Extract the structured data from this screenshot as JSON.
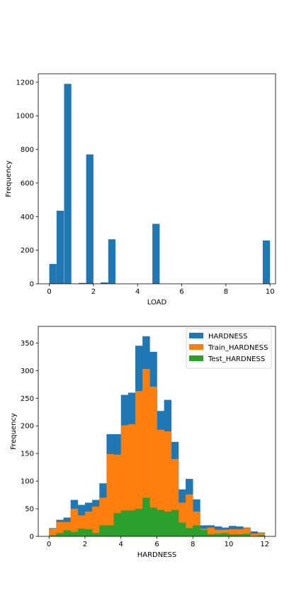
{
  "chart_data": [
    {
      "type": "bar",
      "title": "",
      "xlabel": "LOAD",
      "ylabel": "Frequency",
      "xlim": [
        -0.5,
        10.25
      ],
      "ylim": [
        0,
        1250
      ],
      "xticks": [
        0,
        2,
        4,
        6,
        8,
        10
      ],
      "yticks": [
        0,
        200,
        400,
        600,
        800,
        1000,
        1200
      ],
      "grid": false,
      "bin_width": 0.33,
      "colors": {
        "series": "#1f77b4"
      },
      "bins": [
        {
          "x0": 0.0,
          "value": 118
        },
        {
          "x0": 0.33,
          "value": 435
        },
        {
          "x0": 0.67,
          "value": 1190
        },
        {
          "x0": 1.33,
          "value": 5
        },
        {
          "x0": 1.67,
          "value": 770
        },
        {
          "x0": 2.33,
          "value": 8
        },
        {
          "x0": 2.67,
          "value": 265
        },
        {
          "x0": 4.67,
          "value": 357
        },
        {
          "x0": 9.67,
          "value": 258
        }
      ]
    },
    {
      "type": "bar",
      "title": "",
      "xlabel": "HARDNESS",
      "ylabel": "Frequency",
      "xlim": [
        -0.6,
        12.6
      ],
      "ylim": [
        0,
        380
      ],
      "xticks": [
        0,
        2,
        4,
        6,
        8,
        10,
        12
      ],
      "yticks": [
        0,
        50,
        100,
        150,
        200,
        250,
        300,
        350
      ],
      "grid": false,
      "legend_position": "top-right",
      "bin_edges": [
        0,
        0.4,
        0.8,
        1.2,
        1.6,
        2.0,
        2.4,
        2.8,
        3.2,
        3.6,
        4.0,
        4.4,
        4.8,
        5.2,
        5.6,
        6.0,
        6.4,
        6.8,
        7.2,
        7.6,
        8.0,
        8.4,
        8.8,
        9.2,
        9.6,
        10.0,
        10.4,
        10.8,
        11.2,
        11.6,
        12.0
      ],
      "series": [
        {
          "name": "HARDNESS",
          "color": "#1f77b4",
          "values": [
            15,
            30,
            34,
            66,
            57,
            61,
            66,
            96,
            185,
            185,
            256,
            260,
            345,
            362,
            334,
            227,
            247,
            171,
            85,
            104,
            67,
            20,
            20,
            18,
            16,
            19,
            18,
            16,
            9,
            7
          ]
        },
        {
          "name": "Train_HARDNESS",
          "color": "#ff7f0e",
          "values": [
            14,
            26,
            26,
            50,
            38,
            45,
            54,
            70,
            149,
            148,
            201,
            203,
            263,
            303,
            271,
            193,
            190,
            140,
            61,
            76,
            45,
            14,
            16,
            12,
            12,
            13,
            13,
            15,
            5,
            6
          ]
        },
        {
          "name": "Test_HARDNESS",
          "color": "#2ca02c",
          "values": [
            2,
            6,
            11,
            8,
            14,
            13,
            6,
            20,
            20,
            42,
            47,
            47,
            50,
            70,
            52,
            48,
            45,
            48,
            25,
            15,
            20,
            12,
            4,
            5,
            6,
            4,
            4,
            5,
            0,
            2
          ]
        }
      ]
    }
  ]
}
